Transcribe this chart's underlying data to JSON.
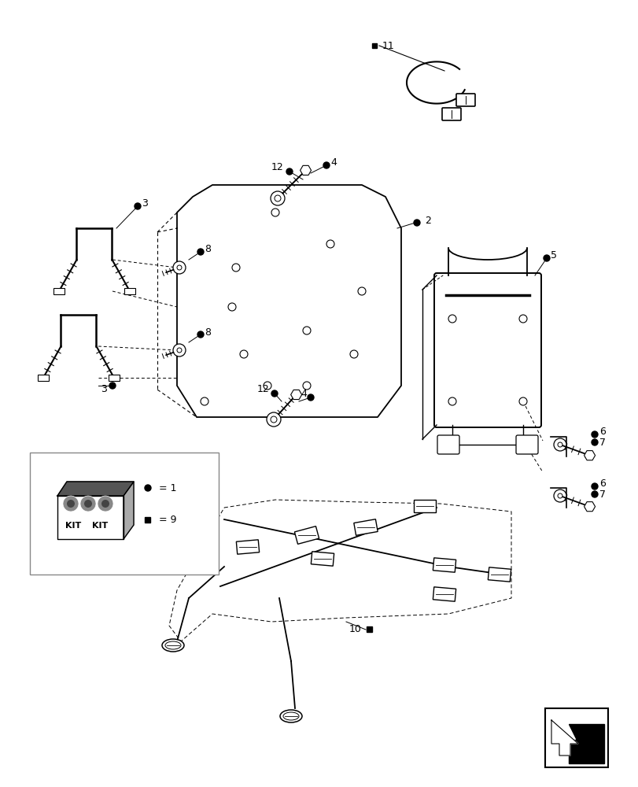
{
  "bg_color": "#ffffff",
  "lc": "#000000",
  "figsize": [
    8.12,
    10.0
  ],
  "dpi": 100
}
